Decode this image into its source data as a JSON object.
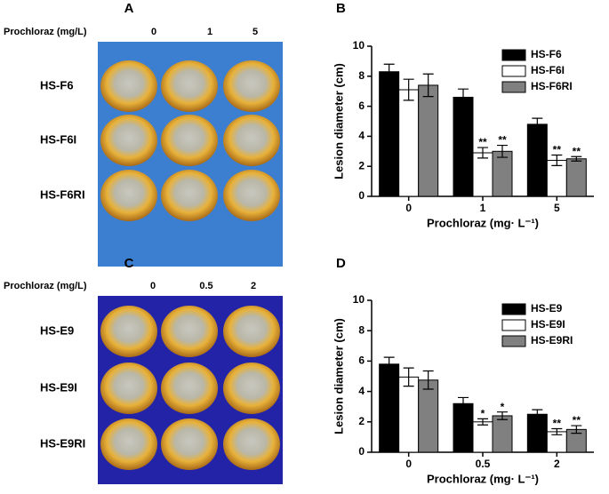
{
  "photo_panels": [
    {
      "panel_label": "A",
      "header": "Prochloraz (mg/L)",
      "columns": [
        "0",
        "1",
        "5"
      ],
      "rows": [
        "HS-F6",
        "HS-F6I",
        "HS-F6RI"
      ]
    },
    {
      "panel_label": "C",
      "header": "Prochloraz (mg/L)",
      "columns": [
        "0",
        "0.5",
        "2"
      ],
      "rows": [
        "HS-E9",
        "HS-E9I",
        "HS-E9RI"
      ]
    }
  ],
  "chart_data": [
    {
      "type": "bar",
      "panel_label": "B",
      "x_label": "Prochloraz (mg· L⁻¹)",
      "y_label": "Lesion diameter (cm)",
      "categories": [
        "0",
        "1",
        "5"
      ],
      "ylim": [
        0,
        10
      ],
      "yticks": [
        0,
        2,
        4,
        6,
        8,
        10
      ],
      "legend": "upper right",
      "series": [
        {
          "name": "HS-F6",
          "color": "#000000",
          "values": [
            8.3,
            6.6,
            4.8
          ],
          "errors": [
            0.5,
            0.55,
            0.4
          ],
          "significance": [
            null,
            null,
            null
          ]
        },
        {
          "name": "HS-F6I",
          "color": "#ffffff",
          "values": [
            7.1,
            2.9,
            2.4
          ],
          "errors": [
            0.7,
            0.35,
            0.35
          ],
          "significance": [
            null,
            "**",
            "**"
          ]
        },
        {
          "name": "HS-F6RI",
          "color": "#808080",
          "values": [
            7.4,
            3.0,
            2.5
          ],
          "errors": [
            0.75,
            0.4,
            0.15
          ],
          "significance": [
            null,
            "**",
            "**"
          ]
        }
      ]
    },
    {
      "type": "bar",
      "panel_label": "D",
      "x_label": "Prochloraz (mg· L⁻¹)",
      "y_label": "Lesion diameter (cm)",
      "categories": [
        "0",
        "0.5",
        "2"
      ],
      "ylim": [
        0,
        10
      ],
      "yticks": [
        0,
        2,
        4,
        6,
        8,
        10
      ],
      "legend": "upper right",
      "series": [
        {
          "name": "HS-E9",
          "color": "#000000",
          "values": [
            5.8,
            3.2,
            2.5
          ],
          "errors": [
            0.45,
            0.4,
            0.3
          ],
          "significance": [
            null,
            null,
            null
          ]
        },
        {
          "name": "HS-E9I",
          "color": "#ffffff",
          "values": [
            4.95,
            2.0,
            1.35
          ],
          "errors": [
            0.6,
            0.2,
            0.2
          ],
          "significance": [
            null,
            "*",
            "**"
          ]
        },
        {
          "name": "HS-E9RI",
          "color": "#808080",
          "values": [
            4.75,
            2.4,
            1.5
          ],
          "errors": [
            0.6,
            0.25,
            0.25
          ],
          "significance": [
            null,
            "*",
            "**"
          ]
        }
      ]
    }
  ]
}
